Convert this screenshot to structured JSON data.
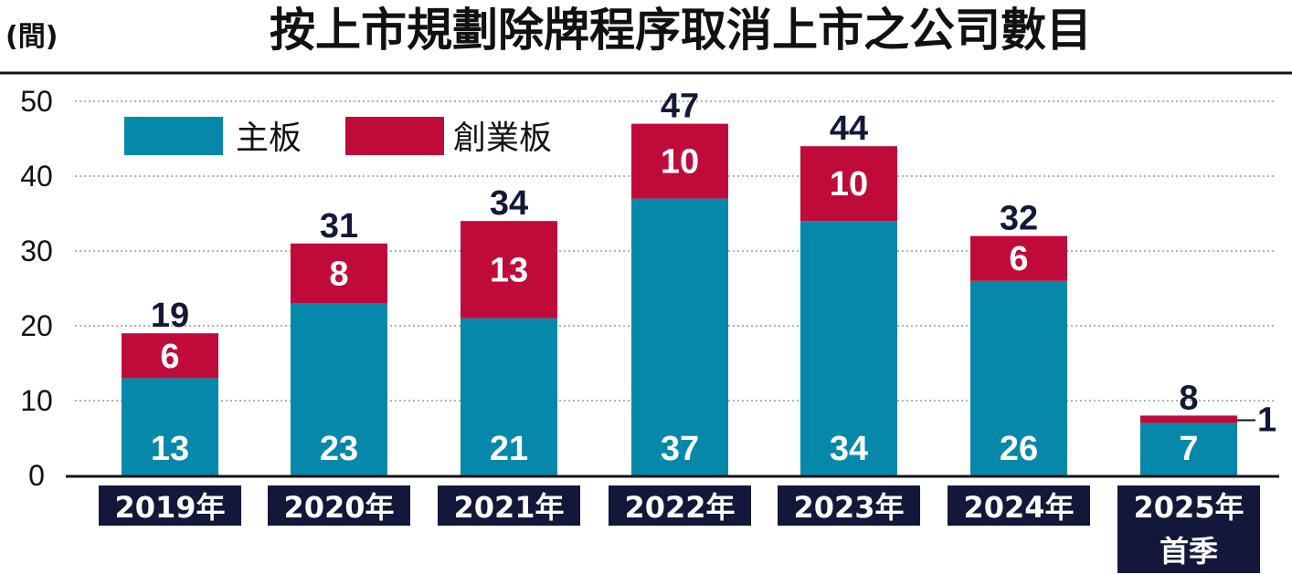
{
  "chart_data": {
    "type": "bar",
    "stacked": true,
    "title": "按上市規劃除牌程序取消上市之公司數目",
    "unit_label": "(間)",
    "categories": [
      "2019年",
      "2020年",
      "2021年",
      "2022年",
      "2023年",
      "2024年",
      "2025年首季"
    ],
    "category_lines": [
      [
        "2019年"
      ],
      [
        "2020年"
      ],
      [
        "2021年"
      ],
      [
        "2022年"
      ],
      [
        "2023年"
      ],
      [
        "2024年"
      ],
      [
        "2025年",
        "首季"
      ]
    ],
    "series": [
      {
        "name": "主板",
        "values": [
          13,
          23,
          21,
          37,
          34,
          26,
          7
        ],
        "color": "#0588aa"
      },
      {
        "name": "創業板",
        "values": [
          6,
          8,
          13,
          10,
          10,
          6,
          1
        ],
        "color": "#bf0a3a"
      }
    ],
    "totals": [
      19,
      31,
      34,
      47,
      44,
      32,
      8
    ],
    "ylim": [
      0,
      50
    ],
    "yticks": [
      0,
      10,
      20,
      30,
      40,
      50
    ],
    "grid": true,
    "legend_position": "top-left",
    "colors": {
      "label_box": "#13183a",
      "total_text": "#13183a",
      "grid": "#999999",
      "axis": "#111111"
    }
  }
}
